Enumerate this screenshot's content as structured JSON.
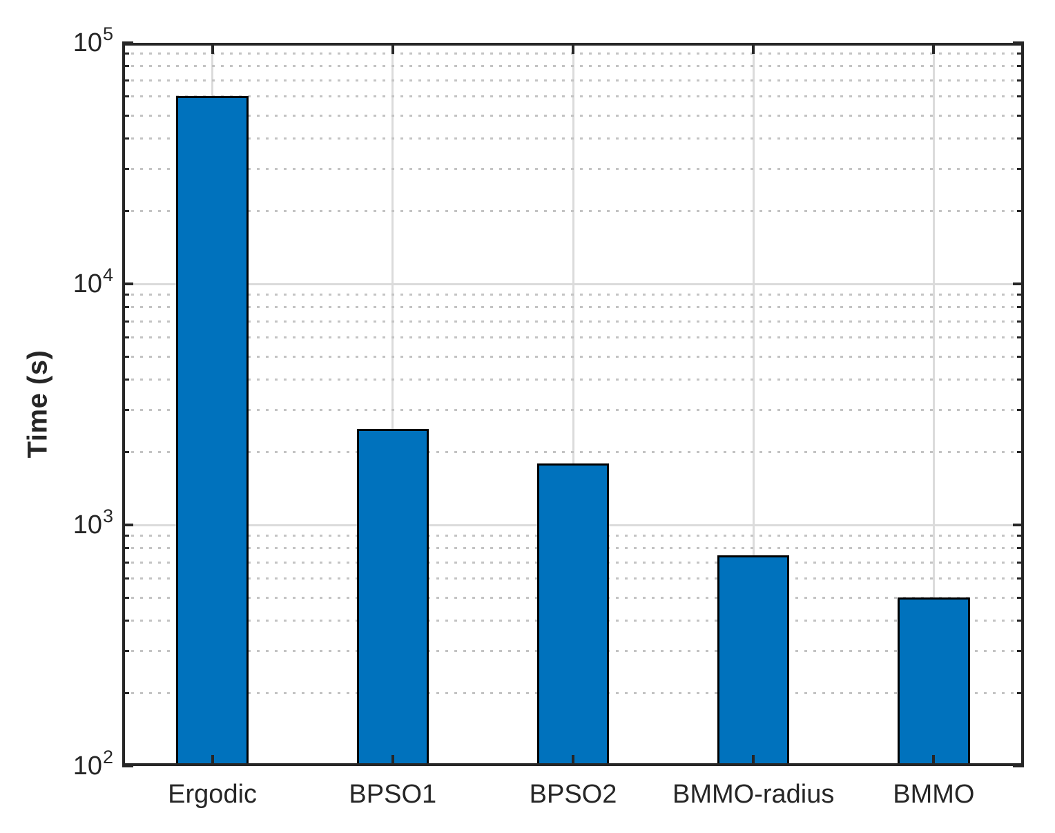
{
  "chart_data": {
    "type": "bar",
    "title": "",
    "categories": [
      "Ergodic",
      "BPSO1",
      "BPSO2",
      "BMMO-radius",
      "BMMO"
    ],
    "values": [
      60000,
      2500,
      1800,
      750,
      500
    ],
    "xlabel": "",
    "ylabel": "Time (s)",
    "yscale": "log",
    "ylim": [
      100,
      100000
    ],
    "y_tick_exponents": [
      2,
      3,
      4,
      5
    ],
    "y_tick_base": "10",
    "grid": {
      "x_major": true,
      "y_major": "solid",
      "y_minor": "dotted",
      "legend": "none"
    },
    "bar_width_fraction": 0.4
  },
  "colors": {
    "bar_fill": "#0072BD",
    "bar_edge": "#000000",
    "axis": "#262626",
    "text": "#262626",
    "grid_major": "#DBDBDB",
    "grid_minor": "#C3C3C3",
    "background": "#FFFFFF"
  }
}
